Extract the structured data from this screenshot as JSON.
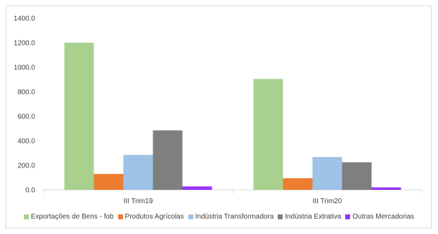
{
  "chart_data": {
    "type": "bar",
    "categories": [
      "III Trim19",
      "III Trim20"
    ],
    "series": [
      {
        "name": "Exportações de Bens - fob",
        "color": "#a9d18e",
        "values": [
          1200,
          905
        ]
      },
      {
        "name": "Produtos Agrícolas",
        "color": "#ed7d31",
        "values": [
          130,
          95
        ]
      },
      {
        "name": "Indústria Transformadora",
        "color": "#9dc3e6",
        "values": [
          285,
          268
        ]
      },
      {
        "name": "Indústria Extrativa",
        "color": "#7f7f7f",
        "values": [
          485,
          225
        ]
      },
      {
        "name": "Outras Mercadorias",
        "color": "#9933ff",
        "values": [
          28,
          20
        ]
      }
    ],
    "y_ticks": [
      "0.0",
      "200.0",
      "400.0",
      "600.0",
      "800.0",
      "1000.0",
      "1200.0",
      "1400.0"
    ],
    "ylim": [
      0,
      1400
    ],
    "grid": false,
    "legend_position": "bottom",
    "title": "",
    "xlabel": "",
    "ylabel": ""
  }
}
